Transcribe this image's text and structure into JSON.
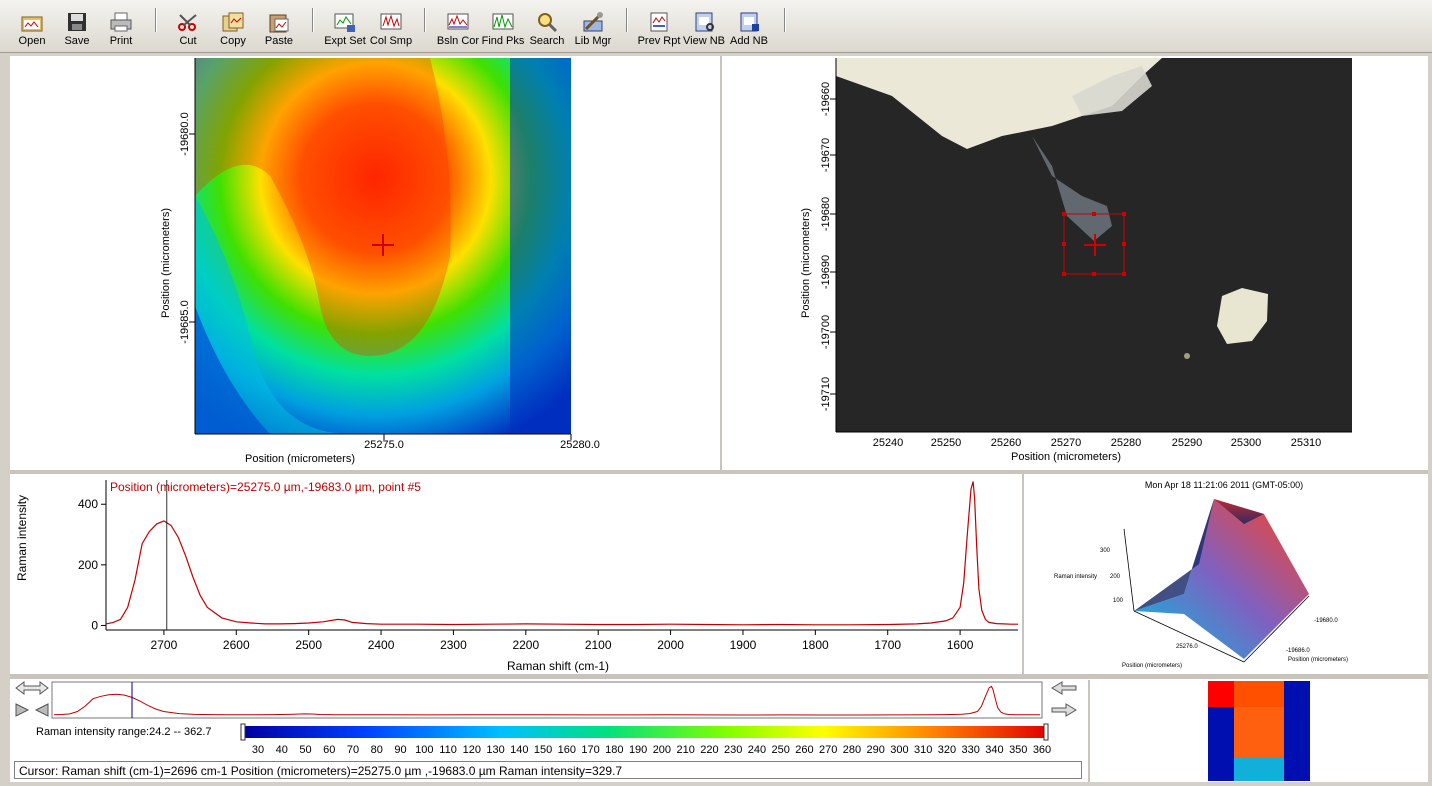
{
  "toolbar": {
    "buttons": [
      {
        "id": "open",
        "label": "Open",
        "icon": "folder-open-icon"
      },
      {
        "id": "save",
        "label": "Save",
        "icon": "floppy-disk-icon"
      },
      {
        "id": "print",
        "label": "Print",
        "icon": "printer-icon"
      },
      {
        "id": "cut",
        "label": "Cut",
        "icon": "scissors-icon"
      },
      {
        "id": "copy",
        "label": "Copy",
        "icon": "copy-icon"
      },
      {
        "id": "paste",
        "label": "Paste",
        "icon": "paste-icon"
      },
      {
        "id": "exptset",
        "label": "Expt Set",
        "icon": "experiment-settings-icon"
      },
      {
        "id": "colsmp",
        "label": "Col Smp",
        "icon": "collect-sample-icon"
      },
      {
        "id": "bslncor",
        "label": "Bsln Cor",
        "icon": "baseline-correct-icon"
      },
      {
        "id": "findpks",
        "label": "Find Pks",
        "icon": "find-peaks-icon"
      },
      {
        "id": "search",
        "label": "Search",
        "icon": "magnifier-icon"
      },
      {
        "id": "libmgr",
        "label": "Lib Mgr",
        "icon": "library-manager-icon"
      },
      {
        "id": "prevrpt",
        "label": "Prev Rpt",
        "icon": "preview-report-icon"
      },
      {
        "id": "viewnb",
        "label": "View NB",
        "icon": "view-notebook-icon"
      },
      {
        "id": "addnb",
        "label": "Add NB",
        "icon": "add-notebook-icon"
      }
    ]
  },
  "map": {
    "ylabel": "Position (micrometers)",
    "xlabel": "Position (micrometers)",
    "yticks": [
      "-19680.0",
      "-19685.0"
    ],
    "xticks": [
      "25275.0",
      "25280.0"
    ]
  },
  "image": {
    "ylabel": "Position (micrometers)",
    "xlabel": "Position (micrometers)",
    "yticks": [
      "-19660",
      "-19670",
      "-19680",
      "-19690",
      "-19700",
      "-19710"
    ],
    "xticks": [
      "25240",
      "25250",
      "25260",
      "25270",
      "25280",
      "25290",
      "25300",
      "25310"
    ]
  },
  "spectrum": {
    "annotation": "Position (micrometers)=25275.0 µm,-19683.0 µm, point #5",
    "ylabel": "Raman intensity",
    "xlabel": "Raman shift (cm-1)"
  },
  "surface3d": {
    "timestamp": "Mon Apr 18 11:21:06 2011 (GMT-05:00)",
    "zlabel": "Raman intensity",
    "zticks": [
      "300",
      "200",
      "100"
    ],
    "x_tick": "25276.0",
    "y_tick1": "-19680.0",
    "y_tick2": "-19686.0",
    "xlabel": "Position (micrometers)",
    "ylabel": "Position (micrometers)"
  },
  "colorbar": {
    "range_label": "Raman intensity range:24.2 -- 362.7",
    "ticks": [
      "30",
      "40",
      "50",
      "60",
      "70",
      "80",
      "90",
      "100",
      "110",
      "120",
      "130",
      "140",
      "150",
      "160",
      "170",
      "180",
      "190",
      "200",
      "210",
      "220",
      "230",
      "240",
      "250",
      "260",
      "270",
      "280",
      "290",
      "300",
      "310",
      "320",
      "330",
      "340",
      "350",
      "360"
    ]
  },
  "status": {
    "text": "Cursor: Raman shift (cm-1)=2696 cm-1  Position (micrometers)=25275.0 µm ,-19683.0 µm  Raman intensity=329.7"
  },
  "chart_data": {
    "type": "line",
    "ylabel": "Raman intensity",
    "xlabel": "Raman shift (cm-1)",
    "xlim": [
      2780,
      1520
    ],
    "ylim": [
      -15,
      480
    ],
    "x_ticks": [
      2700,
      2600,
      2500,
      2400,
      2300,
      2200,
      2100,
      2000,
      1900,
      1800,
      1700,
      1600
    ],
    "y_ticks": [
      0,
      200,
      400
    ],
    "cursor_x": 2696,
    "series": [
      {
        "x": [
          2780,
          2770,
          2760,
          2750,
          2740,
          2730,
          2720,
          2710,
          2700,
          2690,
          2680,
          2670,
          2660,
          2650,
          2640,
          2620,
          2600,
          2580,
          2560,
          2540,
          2520,
          2500,
          2480,
          2460,
          2450,
          2440,
          2420,
          2400,
          2350,
          2300,
          2250,
          2200,
          2150,
          2100,
          2050,
          2000,
          1950,
          1900,
          1850,
          1800,
          1750,
          1700,
          1660,
          1640,
          1620,
          1610,
          1600,
          1595,
          1590,
          1585,
          1582,
          1580,
          1577,
          1574,
          1570,
          1565,
          1560,
          1550,
          1540,
          1530,
          1520
        ],
        "values": [
          5,
          10,
          20,
          60,
          150,
          270,
          310,
          335,
          345,
          330,
          290,
          230,
          160,
          100,
          60,
          25,
          12,
          8,
          5,
          5,
          6,
          8,
          12,
          20,
          18,
          10,
          6,
          4,
          4,
          3,
          4,
          5,
          4,
          3,
          3,
          4,
          3,
          2,
          3,
          2,
          2,
          3,
          5,
          8,
          15,
          25,
          60,
          140,
          300,
          450,
          475,
          420,
          260,
          120,
          50,
          20,
          10,
          6,
          5,
          4,
          4
        ]
      }
    ]
  }
}
